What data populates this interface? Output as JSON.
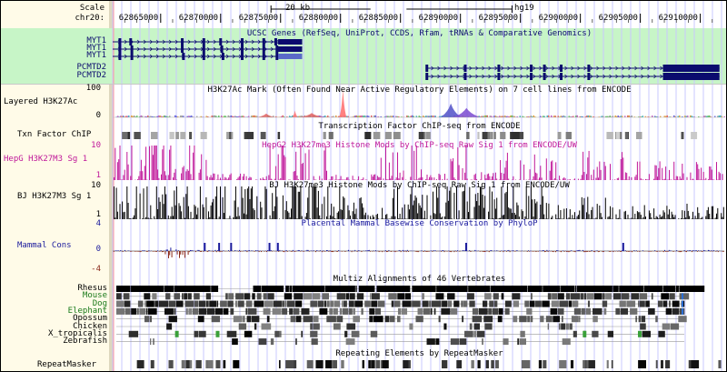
{
  "ruler": {
    "scale_label": "Scale",
    "chrom_label": "chr20:",
    "scale_bar_text": "20 kb",
    "assembly": "hg19",
    "ticks": [
      {
        "label": "62865000",
        "val": 62865000
      },
      {
        "label": "62870000",
        "val": 62870000
      },
      {
        "label": "62875000",
        "val": 62875000
      },
      {
        "label": "62880000",
        "val": 62880000
      },
      {
        "label": "62885000",
        "val": 62885000
      },
      {
        "label": "62890000",
        "val": 62890000
      },
      {
        "label": "62895000",
        "val": 62895000
      },
      {
        "label": "62900000",
        "val": 62900000
      },
      {
        "label": "62905000",
        "val": 62905000
      },
      {
        "label": "62910000",
        "val": 62910000
      }
    ],
    "view_start": 62861000,
    "view_end": 62912000
  },
  "genes": {
    "title": "UCSC Genes (RefSeq, UniProt, CCDS, Rfam, tRNAs & Comparative Genomics)",
    "items": [
      {
        "name": "MYT1",
        "start": 62861000,
        "end": 62876800,
        "exons": [
          62861600,
          62862500,
          62866800,
          62868600,
          62870000,
          62871800,
          62873600,
          62874600
        ],
        "thick_end": 62876800
      },
      {
        "name": "MYT1",
        "start": 62861000,
        "end": 62876800,
        "exons": [
          62861600,
          62862600,
          62866800,
          62868600,
          62870100,
          62871800,
          62873600,
          62874700
        ],
        "thick_end": 62876800
      },
      {
        "name": "MYT1",
        "start": 62861000,
        "end": 62876800,
        "exons": [
          62861600,
          62862600,
          62866900,
          62868600,
          62870200,
          62871800,
          62873600,
          62874700
        ],
        "thick_end": 62876800
      },
      {
        "name": "PCMTD2",
        "start": 62887100,
        "end": 62911600,
        "exons": [
          62887200,
          62890400,
          62893200,
          62895900,
          62897000,
          62898400,
          62900700,
          62907000
        ],
        "thick_end": 62911600
      },
      {
        "name": "PCMTD2",
        "start": 62887100,
        "end": 62911600,
        "exons": [
          62887200,
          62890400,
          62893200,
          62895900,
          62897000,
          62898400,
          62900700,
          62907000
        ],
        "thick_end": 62911600
      }
    ]
  },
  "h3k27ac": {
    "title": "H3K27Ac Mark (Often Found Near Active Regulatory Elements) on 7 cell lines from ENCODE",
    "label": "Layered H3K27Ac",
    "ymax": "100",
    "ymin": "0",
    "peaks": [
      {
        "pos": 62880200,
        "height": 0.92,
        "color": "#ff6b6b",
        "width": 300
      },
      {
        "pos": 62889200,
        "height": 0.45,
        "color": "#5050c8",
        "width": 900
      },
      {
        "pos": 62890500,
        "height": 0.3,
        "color": "#7a4ad0",
        "width": 1200
      },
      {
        "pos": 62873800,
        "height": 0.12,
        "color": "#e06060",
        "width": 800
      },
      {
        "pos": 62877600,
        "height": 0.14,
        "color": "#e06060",
        "width": 1100
      },
      {
        "pos": 62876200,
        "height": 0.22,
        "color": "#ff7070",
        "width": 250
      }
    ]
  },
  "txn": {
    "title": "Transcription Factor ChIP-seq from ENCODE",
    "label": "Txn Factor ChIP"
  },
  "hepg2": {
    "title": "HepG2 H3K27me3 Histone Mods by ChIP-seq Raw Sig 1 from ENCODE/UW",
    "label": "HepG H3K27M3 Sg 1",
    "ymax": "10",
    "ymin": "1",
    "color": "#c0189a"
  },
  "bj": {
    "title": "BJ H3K27me3 Histone Mods by ChIP-seq Raw Sig 1 from ENCODE/UW",
    "label": "BJ H3K27M3 Sg 1",
    "ymax": "10",
    "ymin": "1",
    "color": "#000000"
  },
  "phylop": {
    "title": "Placental Mammal Basewise Conservation by PhyloP",
    "label": "Mammal Cons",
    "ymax": "4",
    "ymid": "0",
    "ymin": "-4",
    "pos_color": "#1a1a9c",
    "neg_color": "#8b2a1a"
  },
  "multiz": {
    "title": "Multiz Alignments of 46 Vertebrates",
    "species": [
      {
        "name": "Rhesus",
        "color": "#000000",
        "density": 0.97
      },
      {
        "name": "Mouse",
        "color": "#1a7a1a",
        "density": 0.78
      },
      {
        "name": "Dog",
        "color": "#1a7a1a",
        "density": 0.8
      },
      {
        "name": "Elephant",
        "color": "#1a7a1a",
        "density": 0.72
      },
      {
        "name": "Opossum",
        "color": "#000000",
        "density": 0.42
      },
      {
        "name": "Chicken",
        "color": "#000000",
        "density": 0.22
      },
      {
        "name": "X_tropicalis",
        "color": "#000000",
        "density": 0.28
      },
      {
        "name": "Zebrafish",
        "color": "#000000",
        "density": 0.18
      }
    ]
  },
  "repeats": {
    "title": "Repeating Elements by RepeatMasker",
    "label": "RepeatMasker"
  },
  "colors": {
    "side_bg": "#fffbe8",
    "genes_bg": "#c7f5c7",
    "gene_color": "#0b0b6e",
    "grid": "#c8c8ff"
  }
}
